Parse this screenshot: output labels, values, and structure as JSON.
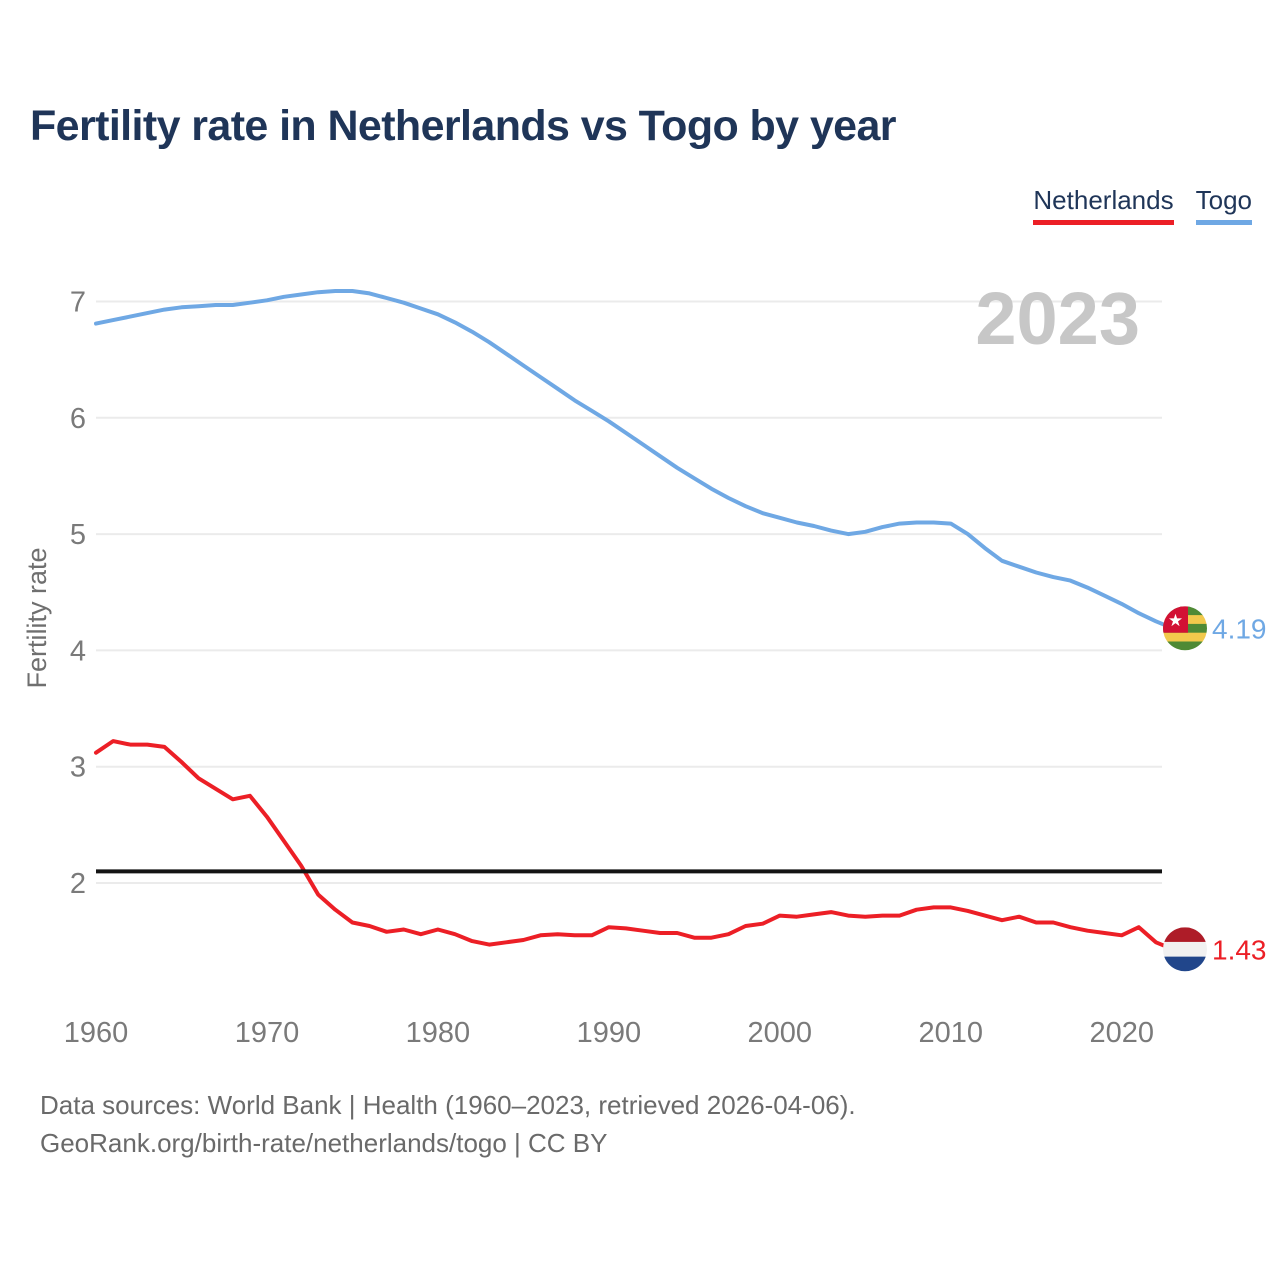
{
  "header": {
    "title": "Fertility rate in Netherlands vs Togo by year"
  },
  "legend": [
    {
      "label": "Netherlands",
      "color": "#EC1F26"
    },
    {
      "label": "Togo",
      "color": "#6FA8E4"
    }
  ],
  "footer": {
    "line1": "Data sources: World Bank | Health (1960–2023, retrieved 2026-04-06).",
    "line2": "GeoRank.org/birth-rate/netherlands/togo | CC BY"
  },
  "chart_data": {
    "type": "line",
    "title": "Fertility rate in Netherlands vs Togo by year",
    "xlabel": "",
    "ylabel": "Fertility rate",
    "watermark": "2023",
    "grid": true,
    "legend_position": "top-right",
    "x_ticks": [
      1960,
      1970,
      1980,
      1990,
      2000,
      2010,
      2020
    ],
    "y_ticks": [
      2,
      3,
      4,
      5,
      6,
      7
    ],
    "xlim": [
      1960,
      2023
    ],
    "ylim": [
      1.2,
      7.4
    ],
    "replacement_line": {
      "value": 2.1,
      "color": "#141414"
    },
    "years": [
      1960,
      1961,
      1962,
      1963,
      1964,
      1965,
      1966,
      1967,
      1968,
      1969,
      1970,
      1971,
      1972,
      1973,
      1974,
      1975,
      1976,
      1977,
      1978,
      1979,
      1980,
      1981,
      1982,
      1983,
      1984,
      1985,
      1986,
      1987,
      1988,
      1989,
      1990,
      1991,
      1992,
      1993,
      1994,
      1995,
      1996,
      1997,
      1998,
      1999,
      2000,
      2001,
      2002,
      2003,
      2004,
      2005,
      2006,
      2007,
      2008,
      2009,
      2010,
      2011,
      2012,
      2013,
      2014,
      2015,
      2016,
      2017,
      2018,
      2019,
      2020,
      2021,
      2022,
      2023
    ],
    "series": [
      {
        "name": "Netherlands",
        "color": "#EC1F26",
        "end_label": "1.43",
        "end_value": 1.43,
        "flag": "netherlands",
        "values": [
          3.12,
          3.22,
          3.19,
          3.19,
          3.17,
          3.04,
          2.9,
          2.81,
          2.72,
          2.75,
          2.57,
          2.36,
          2.15,
          1.9,
          1.77,
          1.66,
          1.63,
          1.58,
          1.6,
          1.56,
          1.6,
          1.56,
          1.5,
          1.47,
          1.49,
          1.51,
          1.55,
          1.56,
          1.55,
          1.55,
          1.62,
          1.61,
          1.59,
          1.57,
          1.57,
          1.53,
          1.53,
          1.56,
          1.63,
          1.65,
          1.72,
          1.71,
          1.73,
          1.75,
          1.72,
          1.71,
          1.72,
          1.72,
          1.77,
          1.79,
          1.79,
          1.76,
          1.72,
          1.68,
          1.71,
          1.66,
          1.66,
          1.62,
          1.59,
          1.57,
          1.55,
          1.62,
          1.49,
          1.43
        ]
      },
      {
        "name": "Togo",
        "color": "#6FA8E4",
        "end_label": "4.19",
        "end_value": 4.19,
        "flag": "togo",
        "values": [
          6.81,
          6.84,
          6.87,
          6.9,
          6.93,
          6.95,
          6.96,
          6.97,
          6.97,
          6.99,
          7.01,
          7.04,
          7.06,
          7.08,
          7.09,
          7.09,
          7.07,
          7.03,
          6.99,
          6.94,
          6.89,
          6.82,
          6.74,
          6.65,
          6.55,
          6.45,
          6.35,
          6.25,
          6.15,
          6.06,
          5.97,
          5.87,
          5.77,
          5.67,
          5.57,
          5.48,
          5.39,
          5.31,
          5.24,
          5.18,
          5.14,
          5.1,
          5.07,
          5.03,
          5.0,
          5.02,
          5.06,
          5.09,
          5.1,
          5.1,
          5.09,
          5.0,
          4.88,
          4.77,
          4.72,
          4.67,
          4.63,
          4.6,
          4.54,
          4.47,
          4.4,
          4.32,
          4.25,
          4.19
        ]
      }
    ],
    "flag_colors": {
      "netherlands": {
        "top": "#AE1C28",
        "middle": "#F1F1F1",
        "bottom": "#21468B"
      },
      "togo": {
        "green": "#4F8A35",
        "yellow": "#F2C94C",
        "red": "#D21034",
        "star": "#FFFFFF"
      }
    }
  }
}
